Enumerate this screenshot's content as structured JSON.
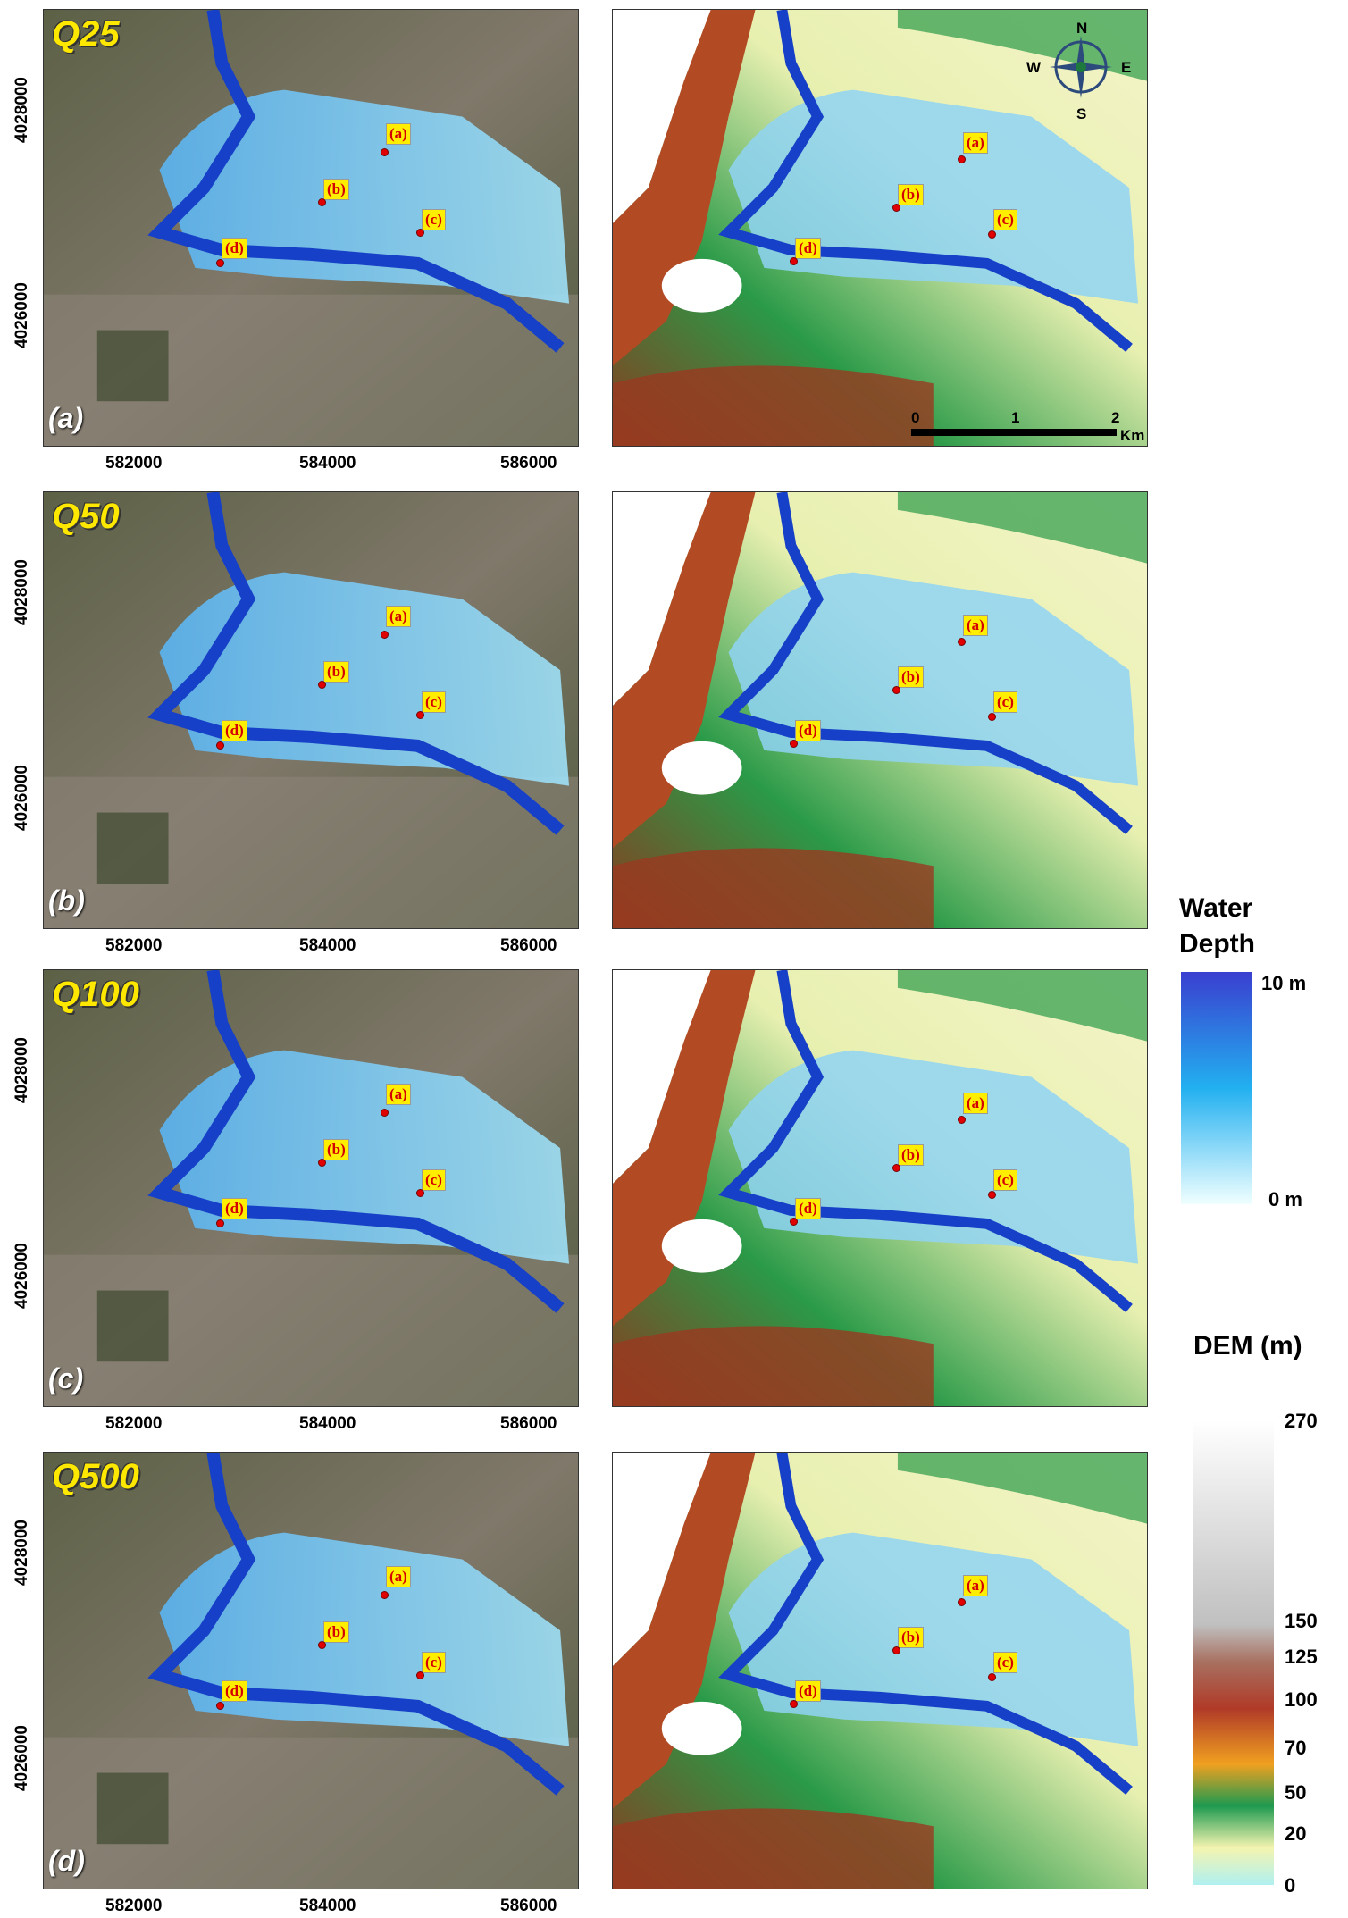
{
  "panels": [
    {
      "q_label": "Q25",
      "panel_label": "(a)"
    },
    {
      "q_label": "Q50",
      "panel_label": "(b)"
    },
    {
      "q_label": "Q100",
      "panel_label": "(c)"
    },
    {
      "q_label": "Q500",
      "panel_label": "(d)"
    }
  ],
  "x_ticks": [
    "582000",
    "584000",
    "586000"
  ],
  "y_ticks": [
    "4028000",
    "4026000"
  ],
  "markers": [
    "(a)",
    "(b)",
    "(c)",
    "(d)"
  ],
  "compass": {
    "n": "N",
    "s": "S",
    "e": "E",
    "w": "W"
  },
  "scale_bar": {
    "labels": [
      "0",
      "1",
      "2"
    ],
    "unit": "Km"
  },
  "water_legend": {
    "title_line1": "Water",
    "title_line2": "Depth",
    "max": "10 m",
    "min": "0 m",
    "colors": [
      "#3a3fd0",
      "#22b0f0",
      "#f0ffff"
    ]
  },
  "dem_legend": {
    "title": "DEM (m)",
    "ticks": [
      "270",
      "150",
      "125",
      "100",
      "70",
      "50",
      "20",
      "0"
    ],
    "colors": [
      "#ffffff",
      "#c0c0c0",
      "#a87060",
      "#b03a28",
      "#f0a020",
      "#1e9a50",
      "#f4f4b0",
      "#b0f0f0"
    ]
  }
}
